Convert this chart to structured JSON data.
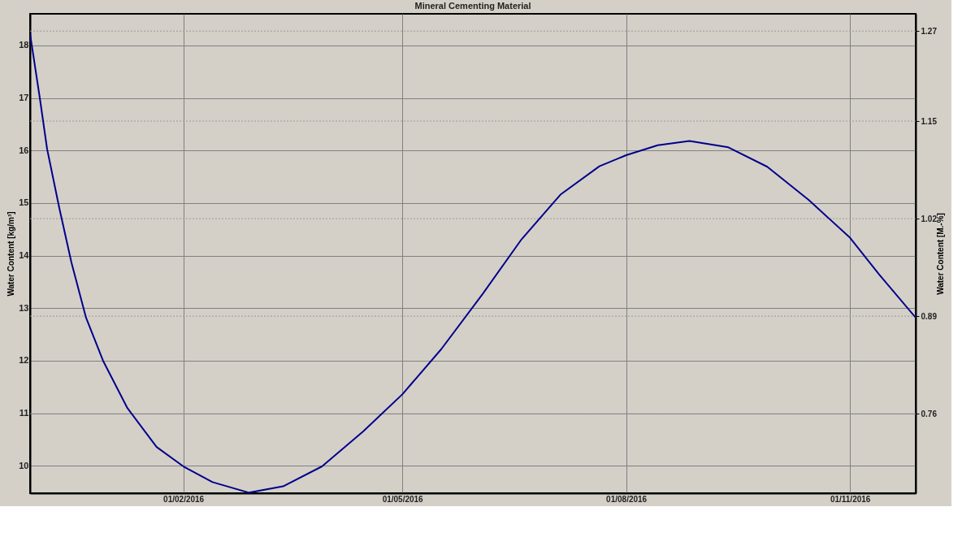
{
  "chart_data": {
    "type": "line",
    "title": "Mineral Cementing Material",
    "ylabel": "Water Content [kg/m³]",
    "y2label": "Water Content [M.-%]",
    "x": [
      "2015-11-30",
      "2015-12-04",
      "2015-12-07",
      "2015-12-12",
      "2015-12-17",
      "2015-12-23",
      "2015-12-30",
      "2016-01-09",
      "2016-01-21",
      "2016-02-01",
      "2016-02-13",
      "2016-02-28",
      "2016-03-13",
      "2016-03-29",
      "2016-04-15",
      "2016-05-01",
      "2016-05-17",
      "2016-06-03",
      "2016-06-19",
      "2016-07-05",
      "2016-07-21",
      "2016-08-01",
      "2016-08-14",
      "2016-08-27",
      "2016-09-12",
      "2016-09-28",
      "2016-10-15",
      "2016-11-01",
      "2016-11-13",
      "2016-11-28"
    ],
    "series": [
      {
        "color": "#00008b",
        "values": [
          18.22,
          17.0,
          16.03,
          14.91,
          13.87,
          12.82,
          12.0,
          11.1,
          10.36,
          9.99,
          9.69,
          9.49,
          9.61,
          9.99,
          10.66,
          11.36,
          12.22,
          13.27,
          14.31,
          15.16,
          15.7,
          15.91,
          16.1,
          16.18,
          16.06,
          15.69,
          15.06,
          14.34,
          13.64,
          12.82
        ]
      }
    ],
    "xlim": [
      "2015-11-30",
      "2016-11-28"
    ],
    "xticks": [
      {
        "value": "2016-02-01",
        "label": "01/02/2016"
      },
      {
        "value": "2016-05-01",
        "label": "01/05/2016"
      },
      {
        "value": "2016-08-01",
        "label": "01/08/2016"
      },
      {
        "value": "2016-11-01",
        "label": "01/11/2016"
      }
    ],
    "ylim": [
      9.48,
      18.6
    ],
    "yticks": [
      10,
      11,
      12,
      13,
      14,
      15,
      16,
      17,
      18
    ],
    "y2lim": [
      0.654,
      1.293
    ],
    "y2ticks": [
      0.76,
      0.89,
      1.02,
      1.15,
      1.27
    ],
    "grid": true,
    "marker": "none",
    "line_style": "solid"
  }
}
